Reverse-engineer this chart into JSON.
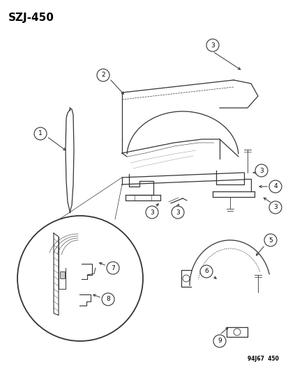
{
  "title": "SZJ-450",
  "footer": "94J67  450",
  "bg_color": "#ffffff",
  "title_fontsize": 11,
  "fig_width": 4.14,
  "fig_height": 5.33,
  "dpi": 100
}
